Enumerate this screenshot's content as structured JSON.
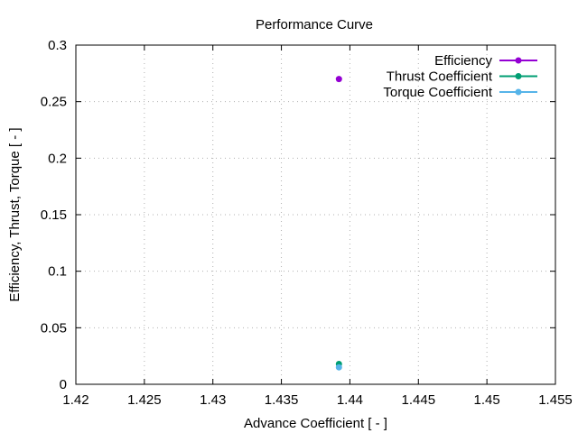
{
  "chart_data": {
    "type": "scatter",
    "title": "Performance Curve",
    "xlabel": "Advance Coefficient [ - ]",
    "ylabel": "Efficiency, Thrust, Torque [ - ]",
    "xlim": [
      1.42,
      1.455
    ],
    "ylim": [
      0,
      0.3
    ],
    "xticks": [
      "1.42",
      "1.425",
      "1.43",
      "1.435",
      "1.44",
      "1.445",
      "1.45",
      "1.455"
    ],
    "yticks": [
      "0",
      "0.05",
      "0.1",
      "0.15",
      "0.2",
      "0.25",
      "0.3"
    ],
    "grid": true,
    "legend_position": "top-right",
    "series": [
      {
        "name": "Efficiency",
        "color": "#9400d3",
        "points": [
          [
            1.4392,
            0.27
          ]
        ]
      },
      {
        "name": "Thrust Coefficient",
        "color": "#009e73",
        "points": [
          [
            1.4392,
            0.018
          ]
        ]
      },
      {
        "name": "Torque Coefficient",
        "color": "#56b4e9",
        "points": [
          [
            1.4392,
            0.015
          ]
        ]
      }
    ]
  }
}
